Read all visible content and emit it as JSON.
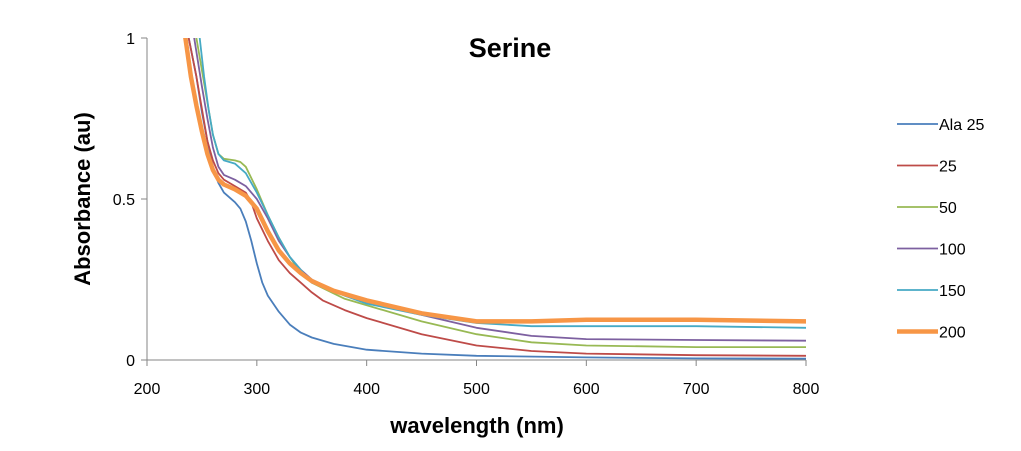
{
  "chart_data": {
    "type": "line",
    "title": "Serine",
    "xlabel": "wavelength (nm)",
    "ylabel": "Absorbance (au)",
    "xlim": [
      200,
      800
    ],
    "ylim": [
      0,
      1
    ],
    "xticks": [
      200,
      300,
      400,
      500,
      600,
      700,
      800
    ],
    "yticks": [
      0,
      0.5,
      1
    ],
    "grid": false,
    "legend": "right",
    "series": [
      {
        "name": "Ala 25",
        "color": "#4a7ebb",
        "points": [
          [
            238,
            1.0
          ],
          [
            245,
            0.88
          ],
          [
            250,
            0.77
          ],
          [
            255,
            0.68
          ],
          [
            260,
            0.6
          ],
          [
            265,
            0.55
          ],
          [
            270,
            0.52
          ],
          [
            280,
            0.49
          ],
          [
            285,
            0.47
          ],
          [
            290,
            0.43
          ],
          [
            295,
            0.37
          ],
          [
            300,
            0.3
          ],
          [
            305,
            0.24
          ],
          [
            310,
            0.2
          ],
          [
            320,
            0.15
          ],
          [
            330,
            0.11
          ],
          [
            340,
            0.085
          ],
          [
            350,
            0.07
          ],
          [
            370,
            0.05
          ],
          [
            400,
            0.032
          ],
          [
            450,
            0.02
          ],
          [
            500,
            0.013
          ],
          [
            600,
            0.008
          ],
          [
            700,
            0.005
          ],
          [
            800,
            0.004
          ]
        ]
      },
      {
        "name": "25",
        "color": "#be4b48",
        "points": [
          [
            238,
            1.0
          ],
          [
            245,
            0.88
          ],
          [
            250,
            0.78
          ],
          [
            255,
            0.68
          ],
          [
            260,
            0.62
          ],
          [
            265,
            0.58
          ],
          [
            270,
            0.56
          ],
          [
            280,
            0.54
          ],
          [
            290,
            0.52
          ],
          [
            295,
            0.49
          ],
          [
            300,
            0.44
          ],
          [
            310,
            0.37
          ],
          [
            320,
            0.31
          ],
          [
            330,
            0.27
          ],
          [
            340,
            0.24
          ],
          [
            350,
            0.21
          ],
          [
            360,
            0.185
          ],
          [
            380,
            0.155
          ],
          [
            400,
            0.13
          ],
          [
            450,
            0.08
          ],
          [
            500,
            0.045
          ],
          [
            550,
            0.028
          ],
          [
            600,
            0.02
          ],
          [
            700,
            0.015
          ],
          [
            800,
            0.013
          ]
        ]
      },
      {
        "name": "50",
        "color": "#98b954",
        "points": [
          [
            245,
            1.0
          ],
          [
            250,
            0.9
          ],
          [
            255,
            0.8
          ],
          [
            260,
            0.7
          ],
          [
            265,
            0.64
          ],
          [
            270,
            0.625
          ],
          [
            280,
            0.62
          ],
          [
            285,
            0.615
          ],
          [
            290,
            0.6
          ],
          [
            300,
            0.53
          ],
          [
            310,
            0.45
          ],
          [
            320,
            0.38
          ],
          [
            330,
            0.32
          ],
          [
            340,
            0.27
          ],
          [
            350,
            0.24
          ],
          [
            380,
            0.19
          ],
          [
            400,
            0.17
          ],
          [
            450,
            0.12
          ],
          [
            500,
            0.08
          ],
          [
            550,
            0.055
          ],
          [
            600,
            0.045
          ],
          [
            700,
            0.04
          ],
          [
            800,
            0.04
          ]
        ]
      },
      {
        "name": "100",
        "color": "#7d60a0",
        "points": [
          [
            243,
            1.0
          ],
          [
            250,
            0.85
          ],
          [
            255,
            0.75
          ],
          [
            260,
            0.66
          ],
          [
            265,
            0.6
          ],
          [
            270,
            0.575
          ],
          [
            280,
            0.56
          ],
          [
            290,
            0.54
          ],
          [
            300,
            0.5
          ],
          [
            310,
            0.44
          ],
          [
            320,
            0.37
          ],
          [
            330,
            0.32
          ],
          [
            340,
            0.28
          ],
          [
            350,
            0.25
          ],
          [
            380,
            0.2
          ],
          [
            400,
            0.18
          ],
          [
            450,
            0.14
          ],
          [
            500,
            0.1
          ],
          [
            550,
            0.075
          ],
          [
            600,
            0.065
          ],
          [
            700,
            0.062
          ],
          [
            800,
            0.06
          ]
        ]
      },
      {
        "name": "150",
        "color": "#46aac5",
        "points": [
          [
            248,
            1.0
          ],
          [
            252,
            0.88
          ],
          [
            256,
            0.78
          ],
          [
            260,
            0.7
          ],
          [
            265,
            0.64
          ],
          [
            270,
            0.62
          ],
          [
            280,
            0.61
          ],
          [
            290,
            0.58
          ],
          [
            300,
            0.52
          ],
          [
            310,
            0.45
          ],
          [
            320,
            0.38
          ],
          [
            330,
            0.32
          ],
          [
            340,
            0.28
          ],
          [
            350,
            0.24
          ],
          [
            380,
            0.2
          ],
          [
            400,
            0.175
          ],
          [
            450,
            0.14
          ],
          [
            500,
            0.115
          ],
          [
            550,
            0.105
          ],
          [
            600,
            0.105
          ],
          [
            700,
            0.105
          ],
          [
            800,
            0.1
          ]
        ]
      },
      {
        "name": "200",
        "color": "#f79646",
        "bold": true,
        "points": [
          [
            235,
            1.0
          ],
          [
            240,
            0.88
          ],
          [
            245,
            0.79
          ],
          [
            250,
            0.71
          ],
          [
            255,
            0.64
          ],
          [
            260,
            0.59
          ],
          [
            265,
            0.56
          ],
          [
            270,
            0.545
          ],
          [
            280,
            0.53
          ],
          [
            290,
            0.51
          ],
          [
            300,
            0.47
          ],
          [
            310,
            0.4
          ],
          [
            320,
            0.34
          ],
          [
            330,
            0.3
          ],
          [
            340,
            0.27
          ],
          [
            350,
            0.245
          ],
          [
            370,
            0.215
          ],
          [
            400,
            0.185
          ],
          [
            450,
            0.145
          ],
          [
            500,
            0.12
          ],
          [
            550,
            0.12
          ],
          [
            600,
            0.125
          ],
          [
            700,
            0.125
          ],
          [
            800,
            0.12
          ]
        ]
      }
    ]
  }
}
